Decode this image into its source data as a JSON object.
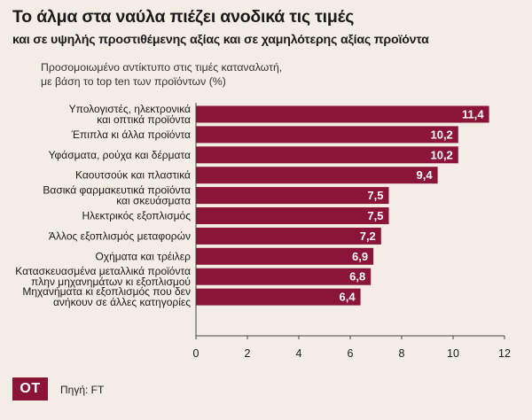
{
  "title": "Το άλμα στα ναύλα πιέζει ανοδικά τις τιμές",
  "subtitle": "και σε υψηλής προστιθέμενης αξίας και σε χαμηλότερης αξίας προϊόντα",
  "note": [
    "Προσομοιωμένο αντίκτυπο στις τιμές καταναλωτή,",
    "με βάση το top ten των προϊόντων (%)"
  ],
  "logo": "OT",
  "source": "Πηγή: FT",
  "colors": {
    "bar": "#8b1538",
    "background": "#f4ede6",
    "label": "#ffffff"
  },
  "chart_data": {
    "type": "bar",
    "orientation": "horizontal",
    "categories": [
      [
        "Υπολογιστές, ηλεκτρονικά",
        "και οπτικά προϊόντα"
      ],
      [
        "Έπιπλα κι άλλα προϊόντα"
      ],
      [
        "Υφάσματα, ρούχα και δέρματα"
      ],
      [
        "Καουτσούκ και πλαστικά"
      ],
      [
        "Βασικά φαρμακευτικά προϊόντα",
        "και σκευάσματα"
      ],
      [
        "Ηλεκτρικός εξοπλισμός"
      ],
      [
        "Άλλος εξοπλισμός μεταφορών"
      ],
      [
        "Οχήματα και τρέιλερ"
      ],
      [
        "Κατασκευασμένα μεταλλικά προϊόντα",
        "πλην μηχανημάτων κι εξοπλισμού"
      ],
      [
        "Μηχανήματα κι εξοπλισμός που δεν",
        "ανήκουν σε άλλες κατηγορίες"
      ]
    ],
    "values": [
      11.4,
      10.2,
      10.2,
      9.4,
      7.5,
      7.5,
      7.2,
      6.9,
      6.8,
      6.4
    ],
    "value_labels": [
      "11,4",
      "10,2",
      "10,2",
      "9,4",
      "7,5",
      "7,5",
      "7,2",
      "6,9",
      "6,8",
      "6,4"
    ],
    "xlim": [
      0,
      12
    ],
    "xticks": [
      0,
      2,
      4,
      6,
      8,
      10,
      12
    ],
    "grid": false,
    "legend": "none"
  }
}
